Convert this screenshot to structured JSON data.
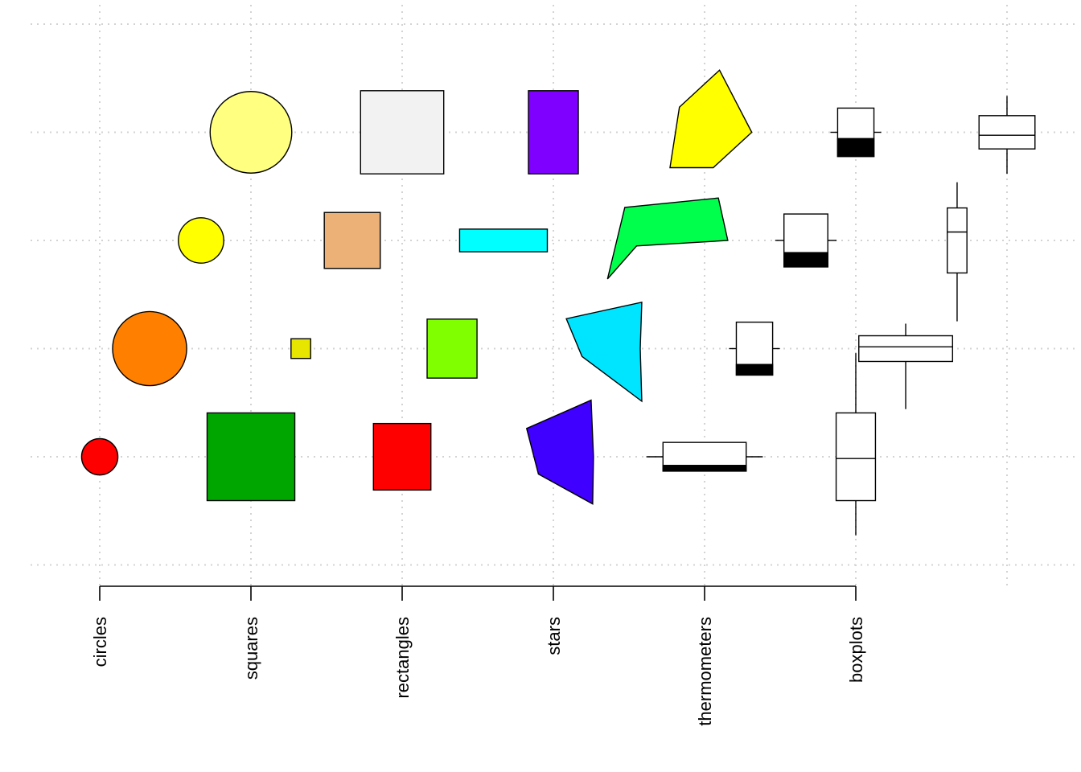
{
  "chart_data": {
    "type": "scatter",
    "title": "",
    "xlabel": "",
    "ylabel": "",
    "xlim": [
      0.5,
      7.5
    ],
    "ylim": [
      0.2,
      5.7
    ],
    "x_ticks": [
      1,
      2,
      3,
      4,
      5,
      6
    ],
    "x_tick_labels": [
      "circles",
      "squares",
      "rectangles",
      "stars",
      "thermometers",
      "boxplots"
    ],
    "grid": true,
    "grid_x": [
      1,
      2,
      3,
      4,
      5,
      6,
      7
    ],
    "grid_y": [
      1,
      2,
      3,
      4,
      5
    ],
    "symbols": [
      {
        "symbol": "circles",
        "x": 1.0,
        "y": 1.0,
        "size": 0.24,
        "color": "#FF0000"
      },
      {
        "symbol": "circles",
        "x": 1.33,
        "y": 2.0,
        "size": 0.49,
        "color": "#FF8000"
      },
      {
        "symbol": "circles",
        "x": 1.67,
        "y": 3.0,
        "size": 0.3,
        "color": "#FFFF00"
      },
      {
        "symbol": "circles",
        "x": 2.0,
        "y": 4.0,
        "size": 0.54,
        "color": "#FFFF80"
      },
      {
        "symbol": "squares",
        "x": 2.0,
        "y": 1.0,
        "size": 0.58,
        "color": "#00A600"
      },
      {
        "symbol": "squares",
        "x": 2.33,
        "y": 2.0,
        "size": 0.13,
        "color": "#E6E600"
      },
      {
        "symbol": "squares",
        "x": 2.67,
        "y": 3.0,
        "size": 0.37,
        "color": "#ECB176"
      },
      {
        "symbol": "squares",
        "x": 3.0,
        "y": 4.0,
        "size": 0.55,
        "color": "#F2F2F2"
      },
      {
        "symbol": "rectangles",
        "x": 3.0,
        "y": 1.0,
        "w": 0.38,
        "h": 0.44,
        "color": "#FF0000"
      },
      {
        "symbol": "rectangles",
        "x": 3.33,
        "y": 2.0,
        "w": 0.33,
        "h": 0.39,
        "color": "#80FF00"
      },
      {
        "symbol": "rectangles",
        "x": 3.67,
        "y": 3.0,
        "w": 0.58,
        "h": 0.15,
        "color": "#00FFFF"
      },
      {
        "symbol": "rectangles",
        "x": 4.0,
        "y": 4.0,
        "w": 0.33,
        "h": 0.55,
        "color": "#8000FF"
      },
      {
        "symbol": "stars",
        "x": 4.0,
        "y": 1.0,
        "color": "#4000FF",
        "vertices": [
          [
            0.5,
            -0.6
          ],
          [
            0.51,
            0.0
          ],
          [
            0.48,
            0.72
          ],
          [
            -0.34,
            0.36
          ],
          [
            -0.19,
            -0.22
          ]
        ]
      },
      {
        "symbol": "stars",
        "x": 4.33,
        "y": 2.0,
        "color": "#00E5FF",
        "vertices": [
          [
            0.49,
            -0.67
          ],
          [
            0.47,
            0.0
          ],
          [
            0.49,
            0.59
          ],
          [
            -0.47,
            0.38
          ],
          [
            -0.27,
            -0.1
          ]
        ]
      },
      {
        "symbol": "stars",
        "x": 4.67,
        "y": 3.0,
        "color": "#00FF4D",
        "vertices": [
          [
            0.93,
            0.0
          ],
          [
            0.81,
            0.54
          ],
          [
            -0.38,
            0.42
          ],
          [
            -0.6,
            -0.49
          ],
          [
            -0.23,
            -0.07
          ]
        ]
      },
      {
        "symbol": "stars",
        "x": 5.0,
        "y": 4.0,
        "color": "#FFFF00",
        "vertices": [
          [
            0.6,
            0.0
          ],
          [
            0.19,
            0.79
          ],
          [
            -0.32,
            0.32
          ],
          [
            -0.44,
            -0.45
          ],
          [
            0.11,
            -0.45
          ]
        ]
      },
      {
        "symbol": "thermometers",
        "x": 5.0,
        "y": 1.0,
        "w": 0.55,
        "h": 0.19,
        "fill": 0.2
      },
      {
        "symbol": "thermometers",
        "x": 5.33,
        "y": 2.0,
        "w": 0.24,
        "h": 0.35,
        "fill": 0.2
      },
      {
        "symbol": "thermometers",
        "x": 5.67,
        "y": 3.0,
        "w": 0.29,
        "h": 0.35,
        "fill": 0.27
      },
      {
        "symbol": "thermometers",
        "x": 6.0,
        "y": 4.0,
        "w": 0.24,
        "h": 0.32,
        "fill": 0.37
      },
      {
        "symbol": "boxplots",
        "x": 6.0,
        "y": 1.0,
        "w": 0.26,
        "h": 0.58,
        "lower_whisker": 0.46,
        "upper_whisker": 0.79,
        "median": 0.48
      },
      {
        "symbol": "boxplots",
        "x": 6.33,
        "y": 2.0,
        "w": 0.62,
        "h": 0.17,
        "lower_whisker": 0.63,
        "upper_whisker": 0.16,
        "median": 0.57
      },
      {
        "symbol": "boxplots",
        "x": 6.67,
        "y": 3.0,
        "w": 0.13,
        "h": 0.43,
        "lower_whisker": 0.64,
        "upper_whisker": 0.34,
        "median": 0.63
      },
      {
        "symbol": "boxplots",
        "x": 7.0,
        "y": 4.0,
        "w": 0.37,
        "h": 0.22,
        "lower_whisker": 0.33,
        "upper_whisker": 0.26,
        "median": 0.41
      }
    ]
  }
}
